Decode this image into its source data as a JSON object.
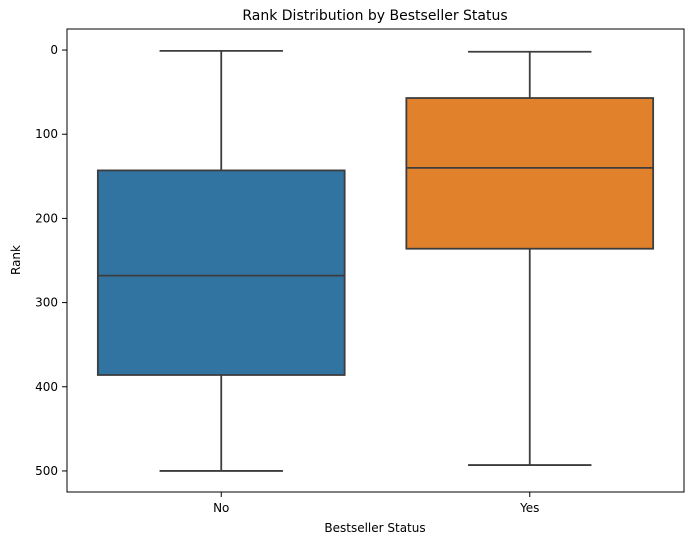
{
  "chart_data": {
    "type": "box",
    "title": "Rank Distribution by Bestseller Status",
    "xlabel": "Bestseller Status",
    "ylabel": "Rank",
    "y_inverted": true,
    "ylim": [
      525,
      -25
    ],
    "yticks": [
      0,
      100,
      200,
      300,
      400,
      500
    ],
    "grid": false,
    "categories": [
      "No",
      "Yes"
    ],
    "boxes": [
      {
        "category": "No",
        "whisker_low": 1,
        "q1": 143,
        "median": 268,
        "q3": 386,
        "whisker_high": 500,
        "color": "#3274a1"
      },
      {
        "category": "Yes",
        "whisker_low": 2,
        "q1": 57,
        "median": 140,
        "q3": 236,
        "whisker_high": 493,
        "color": "#e1812c"
      }
    ],
    "line_color": "#3d3d3d"
  }
}
